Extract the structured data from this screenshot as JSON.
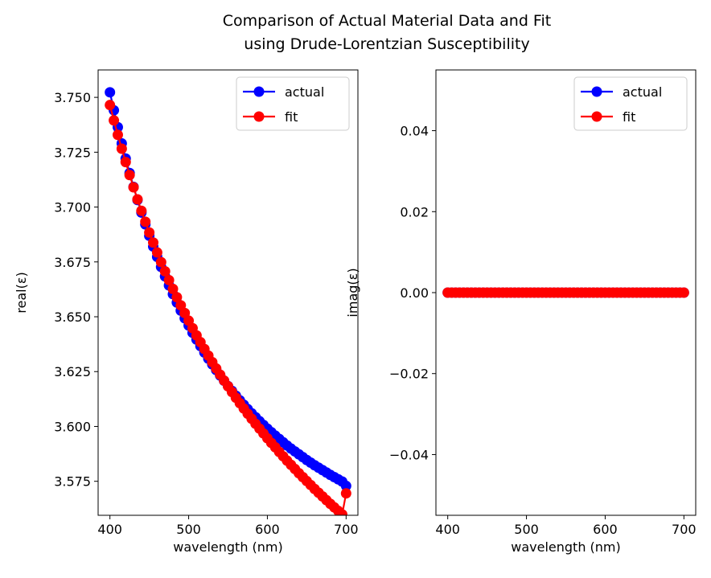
{
  "figure": {
    "title_line1": "Comparison of Actual Material Data and Fit",
    "title_line2": "using Drude-Lorentzian Susceptibility"
  },
  "chart_data": [
    {
      "type": "line",
      "xlabel": "wavelength (nm)",
      "ylabel": "real(ε)",
      "xlim": [
        385,
        715
      ],
      "ylim": [
        3.5595,
        3.7625
      ],
      "xticks": [
        "400",
        "500",
        "600",
        "700"
      ],
      "yticks": [
        "3.575",
        "3.600",
        "3.625",
        "3.650",
        "3.675",
        "3.700",
        "3.725",
        "3.750"
      ],
      "grid": false,
      "legend_position": "top-right",
      "markers": "circle",
      "x": [
        400,
        405,
        410,
        415,
        420,
        425,
        430,
        435,
        440,
        445,
        450,
        455,
        460,
        465,
        470,
        475,
        480,
        485,
        490,
        495,
        500,
        505,
        510,
        515,
        520,
        525,
        530,
        535,
        540,
        545,
        550,
        555,
        560,
        565,
        570,
        575,
        580,
        585,
        590,
        595,
        600,
        605,
        610,
        615,
        620,
        625,
        630,
        635,
        640,
        645,
        650,
        655,
        660,
        665,
        670,
        675,
        680,
        685,
        690,
        695,
        700
      ],
      "series": [
        {
          "name": "actual",
          "color": "#0000ff",
          "values": [
            3.7523,
            3.7441,
            3.7364,
            3.729,
            3.7221,
            3.7155,
            3.7092,
            3.7032,
            3.6975,
            3.6921,
            3.6869,
            3.682,
            3.6773,
            3.6727,
            3.6684,
            3.6643,
            3.6603,
            3.6565,
            3.6528,
            3.6493,
            3.646,
            3.6427,
            3.6396,
            3.6366,
            3.6337,
            3.6309,
            3.6283,
            3.6257,
            3.6232,
            3.6208,
            3.6184,
            3.6162,
            3.614,
            3.6119,
            3.6099,
            3.6079,
            3.606,
            3.6042,
            3.6024,
            3.6007,
            3.599,
            3.5974,
            3.5958,
            3.5943,
            3.5928,
            3.5913,
            3.5899,
            3.5886,
            3.5873,
            3.586,
            3.5847,
            3.5835,
            3.5823,
            3.5812,
            3.5801,
            3.579,
            3.5779,
            3.5769,
            3.5759,
            3.5749,
            3.5729
          ]
        },
        {
          "name": "fit",
          "color": "#ff0000",
          "values": [
            3.7465,
            3.7395,
            3.7329,
            3.7266,
            3.7205,
            3.7146,
            3.709,
            3.7035,
            3.6983,
            3.6933,
            3.6884,
            3.6838,
            3.6793,
            3.6749,
            3.6707,
            3.6667,
            3.6627,
            3.6589,
            3.6552,
            3.6517,
            3.6482,
            3.6448,
            3.6415,
            3.6384,
            3.6353,
            3.6323,
            3.6293,
            3.6264,
            3.6236,
            3.6209,
            3.6183,
            3.6157,
            3.6131,
            3.6106,
            3.6082,
            3.6058,
            3.6035,
            3.6012,
            3.599,
            3.5968,
            3.5946,
            3.5925,
            3.5905,
            3.5884,
            3.5864,
            3.5844,
            3.5825,
            3.5806,
            3.5787,
            3.5769,
            3.5751,
            3.5733,
            3.5715,
            3.5698,
            3.5681,
            3.5664,
            3.5647,
            3.5631,
            3.5615,
            3.5599,
            3.5695
          ]
        }
      ]
    },
    {
      "type": "line",
      "xlabel": "wavelength (nm)",
      "ylabel": "imag(ε)",
      "xlim": [
        385,
        715
      ],
      "ylim": [
        -0.055,
        0.055
      ],
      "xticks": [
        "400",
        "500",
        "600",
        "700"
      ],
      "yticks": [
        "−0.04",
        "−0.02",
        "0.00",
        "0.02",
        "0.04"
      ],
      "grid": false,
      "legend_position": "top-right",
      "markers": "circle",
      "x": [
        400,
        405,
        410,
        415,
        420,
        425,
        430,
        435,
        440,
        445,
        450,
        455,
        460,
        465,
        470,
        475,
        480,
        485,
        490,
        495,
        500,
        505,
        510,
        515,
        520,
        525,
        530,
        535,
        540,
        545,
        550,
        555,
        560,
        565,
        570,
        575,
        580,
        585,
        590,
        595,
        600,
        605,
        610,
        615,
        620,
        625,
        630,
        635,
        640,
        645,
        650,
        655,
        660,
        665,
        670,
        675,
        680,
        685,
        690,
        695,
        700
      ],
      "series": [
        {
          "name": "actual",
          "color": "#0000ff",
          "values": [
            0,
            0,
            0,
            0,
            0,
            0,
            0,
            0,
            0,
            0,
            0,
            0,
            0,
            0,
            0,
            0,
            0,
            0,
            0,
            0,
            0,
            0,
            0,
            0,
            0,
            0,
            0,
            0,
            0,
            0,
            0,
            0,
            0,
            0,
            0,
            0,
            0,
            0,
            0,
            0,
            0,
            0,
            0,
            0,
            0,
            0,
            0,
            0,
            0,
            0,
            0,
            0,
            0,
            0,
            0,
            0,
            0,
            0,
            0,
            0,
            0
          ]
        },
        {
          "name": "fit",
          "color": "#ff0000",
          "values": [
            0,
            0,
            0,
            0,
            0,
            0,
            0,
            0,
            0,
            0,
            0,
            0,
            0,
            0,
            0,
            0,
            0,
            0,
            0,
            0,
            0,
            0,
            0,
            0,
            0,
            0,
            0,
            0,
            0,
            0,
            0,
            0,
            0,
            0,
            0,
            0,
            0,
            0,
            0,
            0,
            0,
            0,
            0,
            0,
            0,
            0,
            0,
            0,
            0,
            0,
            0,
            0,
            0,
            0,
            0,
            0,
            0,
            0,
            0,
            0,
            0
          ]
        }
      ]
    }
  ]
}
